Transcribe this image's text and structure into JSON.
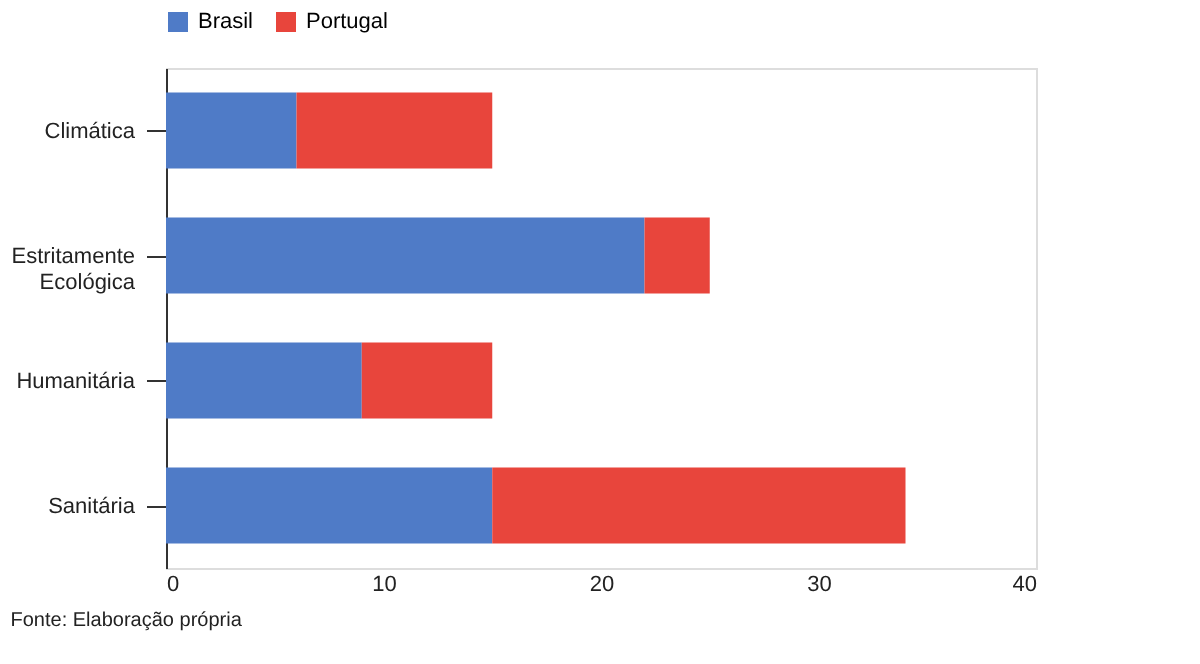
{
  "chart_data": {
    "type": "bar",
    "orientation": "horizontal",
    "stacked": true,
    "categories": [
      "Climática",
      "Estritamente Ecológica",
      "Humanitária",
      "Sanitária"
    ],
    "series": [
      {
        "name": "Brasil",
        "color": "#4f7bc7",
        "values": [
          6,
          22,
          9,
          15
        ]
      },
      {
        "name": "Portugal",
        "color": "#e8453c",
        "values": [
          9,
          3,
          6,
          19
        ]
      }
    ],
    "xlim": [
      0,
      40
    ],
    "xticks": [
      0,
      10,
      20,
      30,
      40
    ],
    "grid": false,
    "legend": "top",
    "annotations": [
      "Fonte: Elaboração própria"
    ]
  }
}
